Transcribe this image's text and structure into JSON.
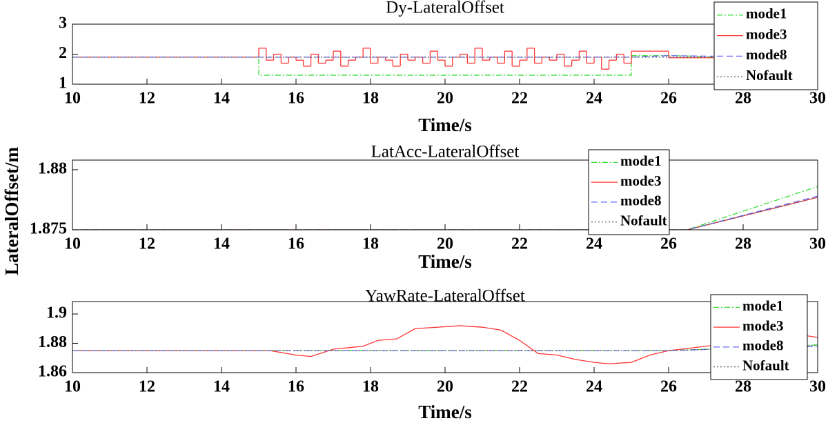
{
  "ylabel": "LateralOffset/m",
  "chart_data": [
    {
      "type": "line",
      "title": "Dy-LateralOffset",
      "xlabel": "Time/s",
      "xlim": [
        10,
        30
      ],
      "xticks": [
        10,
        12,
        14,
        16,
        18,
        20,
        22,
        24,
        26,
        28,
        30
      ],
      "ylim": [
        1,
        3
      ],
      "yticks": [
        1,
        2,
        3
      ],
      "legend": true,
      "series": [
        {
          "name": "mode1",
          "color": "#33dd33",
          "style": "dashdot",
          "x": [
            10,
            15,
            15,
            25,
            25,
            26,
            28,
            30
          ],
          "values": [
            1.9,
            1.9,
            1.3,
            1.3,
            1.95,
            1.95,
            1.9,
            1.9
          ]
        },
        {
          "name": "mode3",
          "color": "#ff3333",
          "style": "solid",
          "step": true,
          "x": [
            10,
            15,
            15.2,
            15.4,
            15.6,
            15.8,
            16,
            16.2,
            16.4,
            16.6,
            16.8,
            17,
            17.2,
            17.4,
            17.6,
            17.8,
            18,
            18.2,
            18.4,
            18.6,
            18.8,
            19,
            19.2,
            19.4,
            19.6,
            19.8,
            20,
            20.2,
            20.4,
            20.6,
            20.8,
            21,
            21.2,
            21.4,
            21.6,
            21.8,
            22,
            22.2,
            22.4,
            22.6,
            22.8,
            23,
            23.2,
            23.4,
            23.6,
            23.8,
            24,
            24.2,
            24.4,
            24.6,
            24.8,
            25,
            26,
            28,
            30
          ],
          "values": [
            1.9,
            2.2,
            1.8,
            2.0,
            1.7,
            1.9,
            1.8,
            1.6,
            2.0,
            1.7,
            1.8,
            2.1,
            1.6,
            1.8,
            1.9,
            2.2,
            1.7,
            1.9,
            1.8,
            1.6,
            2.0,
            1.8,
            1.9,
            1.7,
            2.1,
            1.8,
            1.6,
            1.9,
            2.0,
            1.7,
            2.2,
            1.8,
            1.9,
            1.7,
            2.1,
            1.6,
            1.8,
            2.2,
            1.7,
            1.9,
            1.8,
            2.0,
            1.6,
            1.8,
            2.1,
            1.7,
            1.9,
            1.5,
            1.8,
            2.0,
            1.7,
            2.1,
            1.88,
            1.9,
            1.9
          ]
        },
        {
          "name": "mode8",
          "color": "#6666ff",
          "style": "dashed",
          "x": [
            10,
            25,
            26,
            28,
            30
          ],
          "values": [
            1.9,
            1.9,
            1.95,
            1.92,
            1.9
          ]
        },
        {
          "name": "Nofault",
          "color": "#555555",
          "style": "dotted",
          "x": [
            10,
            30
          ],
          "values": [
            1.9,
            1.9
          ]
        }
      ]
    },
    {
      "type": "line",
      "title": "LatAcc-LateralOffset",
      "xlabel": "Time/s",
      "xlim": [
        10,
        30
      ],
      "xticks": [
        10,
        12,
        14,
        16,
        18,
        20,
        22,
        24,
        26,
        28,
        30
      ],
      "ylim": [
        1.875,
        1.8808
      ],
      "yticks": [
        1.875,
        1.88
      ],
      "legend": true,
      "series": [
        {
          "name": "mode1",
          "color": "#33dd33",
          "style": "dashdot",
          "x": [
            10,
            26.5,
            30
          ],
          "values": [
            1.875,
            1.875,
            1.8786
          ]
        },
        {
          "name": "mode3",
          "color": "#ff3333",
          "style": "solid",
          "x": [
            10,
            26.5,
            30
          ],
          "values": [
            1.875,
            1.875,
            1.8777
          ]
        },
        {
          "name": "mode8",
          "color": "#6666ff",
          "style": "dashed",
          "x": [
            10,
            26.5,
            30
          ],
          "values": [
            1.875,
            1.875,
            1.8778
          ]
        },
        {
          "name": "Nofault",
          "color": "#555555",
          "style": "dotted",
          "x": [
            10,
            26.5,
            30
          ],
          "values": [
            1.875,
            1.875,
            1.8777
          ]
        }
      ]
    },
    {
      "type": "line",
      "title": "YawRate-LateralOffset",
      "xlabel": "Time/s",
      "xlim": [
        10,
        30
      ],
      "xticks": [
        10,
        12,
        14,
        16,
        18,
        20,
        22,
        24,
        26,
        28,
        30
      ],
      "ylim": [
        1.86,
        1.9085
      ],
      "yticks": [
        1.86,
        1.88,
        1.9
      ],
      "legend": true,
      "series": [
        {
          "name": "mode1",
          "color": "#33dd33",
          "style": "dashdot",
          "x": [
            10,
            26,
            30
          ],
          "values": [
            1.875,
            1.875,
            1.879
          ]
        },
        {
          "name": "mode3",
          "color": "#ff3333",
          "style": "solid",
          "x": [
            10,
            15.3,
            16,
            16.4,
            17,
            17.8,
            18.2,
            18.7,
            19.2,
            19.8,
            20.4,
            21,
            21.5,
            22,
            22.5,
            23,
            23.5,
            24,
            24.4,
            25,
            25.5,
            26,
            27,
            28,
            28.5,
            29,
            29.5,
            30
          ],
          "values": [
            1.875,
            1.875,
            1.872,
            1.871,
            1.876,
            1.878,
            1.882,
            1.883,
            1.89,
            1.891,
            1.892,
            1.891,
            1.889,
            1.882,
            1.873,
            1.872,
            1.869,
            1.867,
            1.866,
            1.867,
            1.872,
            1.875,
            1.878,
            1.881,
            1.884,
            1.885,
            1.886,
            1.884
          ]
        },
        {
          "name": "mode8",
          "color": "#6666ff",
          "style": "dashed",
          "x": [
            10,
            26,
            30
          ],
          "values": [
            1.875,
            1.875,
            1.878
          ]
        },
        {
          "name": "Nofault",
          "color": "#555555",
          "style": "dotted",
          "x": [
            10,
            26,
            30
          ],
          "values": [
            1.875,
            1.875,
            1.8785
          ]
        }
      ]
    }
  ]
}
